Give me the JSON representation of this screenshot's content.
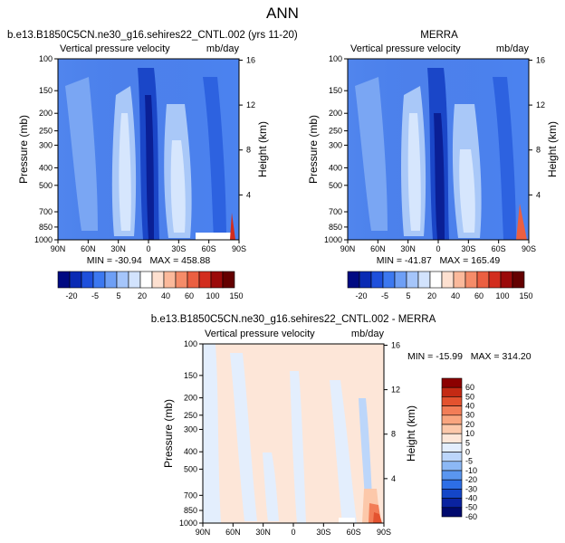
{
  "figure_title": "ANN",
  "colors": {
    "left_scale": [
      "#000a82",
      "#0a2bb4",
      "#1e50dc",
      "#3c78f0",
      "#6e9ff5",
      "#a5c5fa",
      "#d2e3fd",
      "#ffffff",
      "#fde0d0",
      "#fbb99b",
      "#f58c69",
      "#eb5f41",
      "#d22d1e",
      "#9b0a0a",
      "#640000"
    ],
    "diff_scale": [
      "#000a6e",
      "#0a23a0",
      "#1446c8",
      "#2d6ee6",
      "#5a96f0",
      "#8cb8f5",
      "#bcd6fa",
      "#e3eefd",
      "#fde6d8",
      "#fcc8aa",
      "#f9a57f",
      "#f27d57",
      "#e3522f",
      "#c42a14",
      "#8c0000"
    ]
  },
  "chart_data": [
    {
      "type": "heatmap",
      "title": "b.e13.B1850C5CN.ne30_g16.sehires22_CNTL.002 (yrs 11-20)",
      "left_string": "Vertical pressure velocity",
      "right_string": "mb/day",
      "ylabel": "Pressure (mb)",
      "ylabel_right": "Height (km)",
      "x_ticks": [
        "90N",
        "60N",
        "30N",
        "0",
        "30S",
        "60S",
        "90S"
      ],
      "y_ticks": [
        "100",
        "150",
        "200",
        "250",
        "300",
        "400",
        "500",
        "700",
        "850",
        "1000"
      ],
      "y_ticks_right": [
        "16",
        "12",
        "8",
        "4"
      ],
      "stats": "MIN = -30.94   MAX = 458.88",
      "xlim": [
        90,
        -90
      ],
      "ylim": [
        1000,
        100
      ],
      "colorbar_labels": [
        "-20",
        "-5",
        "5",
        "20",
        "40",
        "60",
        "100",
        "150"
      ]
    },
    {
      "type": "heatmap",
      "title": "MERRA",
      "left_string": "Vertical pressure velocity",
      "right_string": "mb/day",
      "ylabel": "Pressure (mb)",
      "ylabel_right": "Height (km)",
      "x_ticks": [
        "90N",
        "60N",
        "30N",
        "0",
        "30S",
        "60S",
        "90S"
      ],
      "y_ticks": [
        "100",
        "150",
        "200",
        "250",
        "300",
        "400",
        "500",
        "700",
        "850",
        "1000"
      ],
      "y_ticks_right": [
        "16",
        "12",
        "8",
        "4"
      ],
      "stats": "MIN = -41.87   MAX = 165.49",
      "xlim": [
        90,
        -90
      ],
      "ylim": [
        1000,
        100
      ],
      "colorbar_labels": [
        "-20",
        "-5",
        "5",
        "20",
        "40",
        "60",
        "100",
        "150"
      ]
    },
    {
      "type": "heatmap",
      "title": "b.e13.B1850C5CN.ne30_g16.sehires22_CNTL.002 - MERRA",
      "left_string": "Vertical pressure velocity",
      "right_string": "mb/day",
      "ylabel": "Pressure (mb)",
      "ylabel_right": "Height (km)",
      "x_ticks": [
        "90N",
        "60N",
        "30N",
        "0",
        "30S",
        "60S",
        "90S"
      ],
      "y_ticks": [
        "100",
        "150",
        "200",
        "250",
        "300",
        "400",
        "500",
        "700",
        "850",
        "1000"
      ],
      "y_ticks_right": [
        "16",
        "12",
        "8",
        "4"
      ],
      "stats": "MIN = -15.99   MAX = 314.20",
      "xlim": [
        90,
        -90
      ],
      "ylim": [
        1000,
        100
      ],
      "colorbar_labels": [
        "60",
        "50",
        "40",
        "30",
        "20",
        "10",
        "5",
        "0",
        "-5",
        "-10",
        "-20",
        "-30",
        "-40",
        "-50",
        "-60"
      ]
    }
  ]
}
